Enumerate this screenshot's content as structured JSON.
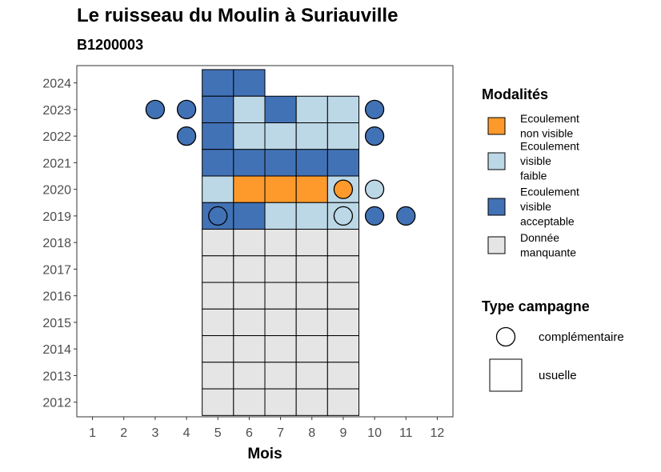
{
  "chart_data": {
    "type": "heatmap",
    "title": "Le ruisseau du Moulin à Suriauville",
    "subtitle": "B1200003",
    "xlabel": "Mois",
    "x_ticks": [
      "1",
      "2",
      "3",
      "4",
      "5",
      "6",
      "7",
      "8",
      "9",
      "10",
      "11",
      "12"
    ],
    "y_ticks": [
      "2012",
      "2013",
      "2014",
      "2015",
      "2016",
      "2017",
      "2018",
      "2019",
      "2020",
      "2021",
      "2022",
      "2023",
      "2024"
    ],
    "xlim": [
      0.5,
      12.5
    ],
    "ylim": [
      2011.45,
      2024.65
    ],
    "colors": {
      "non_visible": "#fd9a2b",
      "visible_faible": "#bcd7e6",
      "visible_acceptable": "#4272b6",
      "manquante": "#e5e5e5"
    },
    "usuelle": [
      {
        "year": 2024,
        "month": 5,
        "m": "visible_acceptable"
      },
      {
        "year": 2024,
        "month": 6,
        "m": "visible_acceptable"
      },
      {
        "year": 2023,
        "month": 5,
        "m": "visible_acceptable"
      },
      {
        "year": 2023,
        "month": 6,
        "m": "visible_faible"
      },
      {
        "year": 2023,
        "month": 7,
        "m": "visible_acceptable"
      },
      {
        "year": 2023,
        "month": 8,
        "m": "visible_faible"
      },
      {
        "year": 2023,
        "month": 9,
        "m": "visible_faible"
      },
      {
        "year": 2022,
        "month": 5,
        "m": "visible_acceptable"
      },
      {
        "year": 2022,
        "month": 6,
        "m": "visible_faible"
      },
      {
        "year": 2022,
        "month": 7,
        "m": "visible_faible"
      },
      {
        "year": 2022,
        "month": 8,
        "m": "visible_faible"
      },
      {
        "year": 2022,
        "month": 9,
        "m": "visible_faible"
      },
      {
        "year": 2021,
        "month": 5,
        "m": "visible_acceptable"
      },
      {
        "year": 2021,
        "month": 6,
        "m": "visible_acceptable"
      },
      {
        "year": 2021,
        "month": 7,
        "m": "visible_acceptable"
      },
      {
        "year": 2021,
        "month": 8,
        "m": "visible_acceptable"
      },
      {
        "year": 2021,
        "month": 9,
        "m": "visible_acceptable"
      },
      {
        "year": 2020,
        "month": 5,
        "m": "visible_faible"
      },
      {
        "year": 2020,
        "month": 6,
        "m": "non_visible"
      },
      {
        "year": 2020,
        "month": 7,
        "m": "non_visible"
      },
      {
        "year": 2020,
        "month": 8,
        "m": "non_visible"
      },
      {
        "year": 2020,
        "month": 9,
        "m": "visible_faible"
      },
      {
        "year": 2019,
        "month": 5,
        "m": "visible_acceptable"
      },
      {
        "year": 2019,
        "month": 6,
        "m": "visible_acceptable"
      },
      {
        "year": 2019,
        "month": 7,
        "m": "visible_faible"
      },
      {
        "year": 2019,
        "month": 8,
        "m": "visible_faible"
      },
      {
        "year": 2019,
        "month": 9,
        "m": "visible_faible"
      },
      {
        "year": 2018,
        "month": 5,
        "m": "manquante"
      },
      {
        "year": 2018,
        "month": 6,
        "m": "manquante"
      },
      {
        "year": 2018,
        "month": 7,
        "m": "manquante"
      },
      {
        "year": 2018,
        "month": 8,
        "m": "manquante"
      },
      {
        "year": 2018,
        "month": 9,
        "m": "manquante"
      },
      {
        "year": 2017,
        "month": 5,
        "m": "manquante"
      },
      {
        "year": 2017,
        "month": 6,
        "m": "manquante"
      },
      {
        "year": 2017,
        "month": 7,
        "m": "manquante"
      },
      {
        "year": 2017,
        "month": 8,
        "m": "manquante"
      },
      {
        "year": 2017,
        "month": 9,
        "m": "manquante"
      },
      {
        "year": 2016,
        "month": 5,
        "m": "manquante"
      },
      {
        "year": 2016,
        "month": 6,
        "m": "manquante"
      },
      {
        "year": 2016,
        "month": 7,
        "m": "manquante"
      },
      {
        "year": 2016,
        "month": 8,
        "m": "manquante"
      },
      {
        "year": 2016,
        "month": 9,
        "m": "manquante"
      },
      {
        "year": 2015,
        "month": 5,
        "m": "manquante"
      },
      {
        "year": 2015,
        "month": 6,
        "m": "manquante"
      },
      {
        "year": 2015,
        "month": 7,
        "m": "manquante"
      },
      {
        "year": 2015,
        "month": 8,
        "m": "manquante"
      },
      {
        "year": 2015,
        "month": 9,
        "m": "manquante"
      },
      {
        "year": 2014,
        "month": 5,
        "m": "manquante"
      },
      {
        "year": 2014,
        "month": 6,
        "m": "manquante"
      },
      {
        "year": 2014,
        "month": 7,
        "m": "manquante"
      },
      {
        "year": 2014,
        "month": 8,
        "m": "manquante"
      },
      {
        "year": 2014,
        "month": 9,
        "m": "manquante"
      },
      {
        "year": 2013,
        "month": 5,
        "m": "manquante"
      },
      {
        "year": 2013,
        "month": 6,
        "m": "manquante"
      },
      {
        "year": 2013,
        "month": 7,
        "m": "manquante"
      },
      {
        "year": 2013,
        "month": 8,
        "m": "manquante"
      },
      {
        "year": 2013,
        "month": 9,
        "m": "manquante"
      },
      {
        "year": 2012,
        "month": 5,
        "m": "manquante"
      },
      {
        "year": 2012,
        "month": 6,
        "m": "manquante"
      },
      {
        "year": 2012,
        "month": 7,
        "m": "manquante"
      },
      {
        "year": 2012,
        "month": 8,
        "m": "manquante"
      },
      {
        "year": 2012,
        "month": 9,
        "m": "manquante"
      }
    ],
    "complementaire": [
      {
        "year": 2023,
        "month": 3,
        "m": "visible_acceptable"
      },
      {
        "year": 2023,
        "month": 4,
        "m": "visible_acceptable"
      },
      {
        "year": 2023,
        "month": 10,
        "m": "visible_acceptable"
      },
      {
        "year": 2022,
        "month": 4,
        "m": "visible_acceptable"
      },
      {
        "year": 2022,
        "month": 10,
        "m": "visible_acceptable"
      },
      {
        "year": 2020,
        "month": 9,
        "m": "non_visible"
      },
      {
        "year": 2020,
        "month": 10,
        "m": "visible_faible"
      },
      {
        "year": 2019,
        "month": 5,
        "m": "visible_acceptable"
      },
      {
        "year": 2019,
        "month": 9,
        "m": "visible_faible"
      },
      {
        "year": 2019,
        "month": 10,
        "m": "visible_acceptable"
      },
      {
        "year": 2019,
        "month": 11,
        "m": "visible_acceptable"
      }
    ],
    "legend": {
      "modalites_title": "Modalités",
      "modalites": [
        {
          "key": "non_visible",
          "lines": [
            "Ecoulement",
            "non visible"
          ]
        },
        {
          "key": "visible_faible",
          "lines": [
            "Ecoulement",
            "visible",
            "faible"
          ]
        },
        {
          "key": "visible_acceptable",
          "lines": [
            "Ecoulement",
            "visible",
            "acceptable"
          ]
        },
        {
          "key": "manquante",
          "lines": [
            "Donnée",
            "manquante"
          ]
        }
      ],
      "type_title": "Type campagne",
      "types": [
        {
          "key": "complementaire",
          "label": "complémentaire"
        },
        {
          "key": "usuelle",
          "label": "usuelle"
        }
      ]
    }
  }
}
